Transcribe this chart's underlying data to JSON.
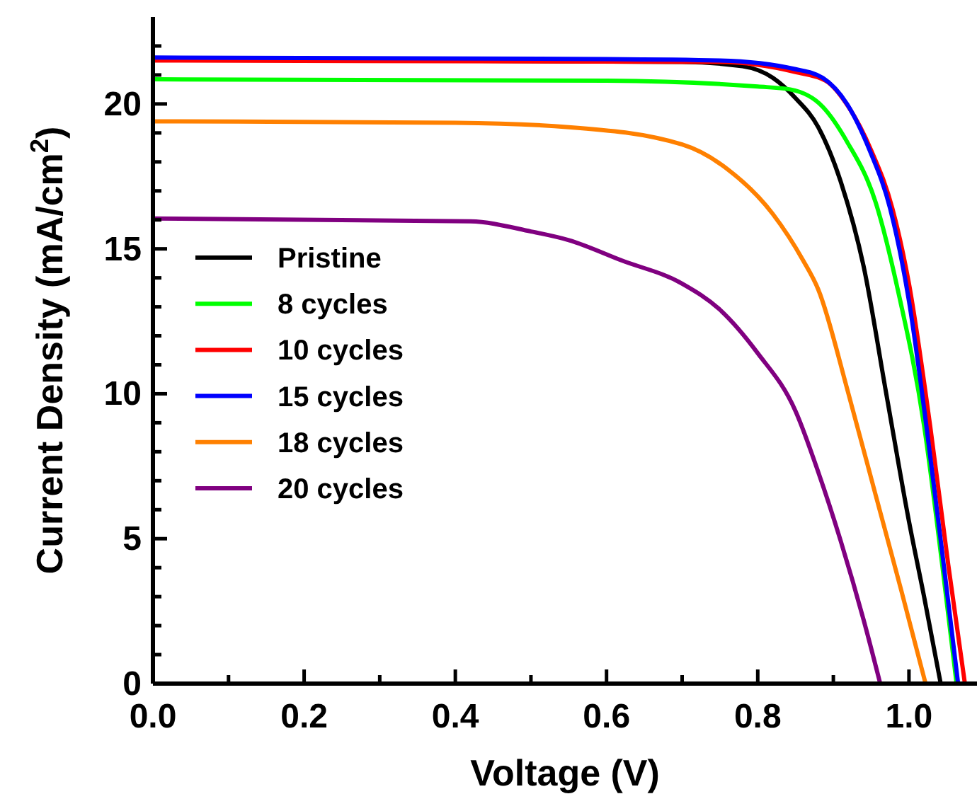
{
  "chart_data": {
    "type": "line",
    "xlabel": "Voltage (V)",
    "ylabel": "Current Density (mA/cm$^{2}$)",
    "xlim": [
      0,
      1.09
    ],
    "ylim": [
      0,
      23
    ],
    "xticks": [
      {
        "value": 0,
        "label": "0.0"
      },
      {
        "value": 0.1,
        "label": null
      },
      0.2,
      {
        "value": 0.3,
        "label": null
      },
      0.4,
      {
        "value": 0.5,
        "label": null
      },
      0.6,
      {
        "value": 0.7,
        "label": null
      },
      0.8,
      {
        "value": 0.9,
        "label": null
      },
      {
        "value": 1.0,
        "label": "1.0"
      }
    ],
    "yticks": [
      0,
      {
        "value": 1,
        "label": null
      },
      {
        "value": 2,
        "label": null
      },
      {
        "value": 3,
        "label": null
      },
      {
        "value": 4,
        "label": null
      },
      5,
      {
        "value": 6,
        "label": null
      },
      {
        "value": 7,
        "label": null
      },
      {
        "value": 8,
        "label": null
      },
      {
        "value": 9,
        "label": null
      },
      10,
      {
        "value": 11,
        "label": null
      },
      {
        "value": 12,
        "label": null
      },
      {
        "value": 13,
        "label": null
      },
      {
        "value": 14,
        "label": null
      },
      15,
      {
        "value": 16,
        "label": null
      },
      {
        "value": 17,
        "label": null
      },
      {
        "value": 18,
        "label": null
      },
      {
        "value": 19,
        "label": null
      },
      20,
      {
        "value": 21,
        "label": null
      },
      {
        "value": 22,
        "label": null
      }
    ],
    "legend": "left",
    "grid": false,
    "marker": "none",
    "line_style": "solid",
    "series": [
      {
        "name": "Pristine",
        "color": "#000000",
        "x": [
          0,
          0.5,
          0.7,
          0.78,
          0.82,
          0.85,
          0.88,
          0.91,
          0.94,
          0.97,
          1.0,
          1.02,
          1.042
        ],
        "values": [
          21.55,
          null,
          21.45,
          21.3,
          20.9,
          20.2,
          19.2,
          17.3,
          14.4,
          10,
          5.6,
          3,
          0
        ]
      },
      {
        "name": "8 cycles",
        "color": "#00ff00",
        "x": [
          0,
          0.6,
          0.8,
          0.843,
          0.886,
          0.918,
          0.956,
          0.986,
          1.02,
          1.044,
          1.063
        ],
        "values": [
          20.85,
          20.8,
          20.6,
          20.5,
          19.9,
          18.7,
          16.6,
          13.5,
          8.9,
          4.1,
          0
        ]
      },
      {
        "name": "10 cycles",
        "color": "#ff0000",
        "x": [
          0,
          0.75,
          0.85,
          0.89,
          0.92,
          0.95,
          0.978,
          1.0,
          1.028,
          1.052,
          1.074
        ],
        "values": [
          21.5,
          21.45,
          21.1,
          20.8,
          19.9,
          18.4,
          16.4,
          13.8,
          8.9,
          4.1,
          0
        ]
      },
      {
        "name": "15 cycles",
        "color": "#0000ff",
        "x": [
          0,
          0.6,
          0.75,
          0.85,
          0.886,
          0.918,
          0.948,
          0.975,
          1.0,
          1.023,
          1.046,
          1.065
        ],
        "values": [
          21.6,
          21.55,
          21.5,
          21.2,
          20.9,
          20.0,
          18.4,
          16.4,
          13.2,
          8.9,
          4.1,
          0
        ]
      },
      {
        "name": "18 cycles",
        "color": "#ff8000",
        "x": [
          0,
          0.4,
          0.55,
          0.7,
          0.76,
          0.82,
          0.86,
          0.88,
          0.92,
          0.956,
          0.99,
          1.022
        ],
        "values": [
          19.4,
          19.35,
          19.2,
          18.6,
          17.75,
          16.2,
          14.6,
          13.6,
          10.0,
          6.5,
          3.2,
          0
        ]
      },
      {
        "name": "20 cycles",
        "color": "#800080",
        "x": [
          0,
          0.42,
          0.5,
          0.55,
          0.62,
          0.7,
          0.75,
          0.8,
          0.85,
          0.88,
          0.91,
          0.94,
          0.962
        ],
        "values": [
          16.05,
          15.95,
          15.6,
          15.3,
          14.6,
          13.8,
          12.9,
          11.4,
          9.4,
          7.3,
          4.9,
          2.2,
          0
        ]
      }
    ]
  }
}
